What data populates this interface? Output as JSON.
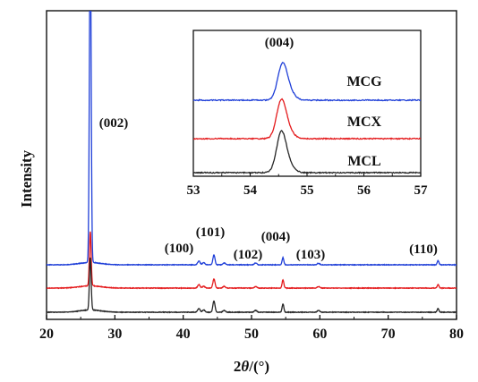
{
  "chart_data": [
    {
      "type": "line",
      "xlabel": "2θ/(°)",
      "ylabel": "Intensity",
      "xlim": [
        20,
        80
      ],
      "x_ticks": [
        20,
        30,
        40,
        50,
        60,
        70,
        80
      ],
      "y_ticks_labeled": false,
      "grid": false,
      "legend": "none (series labelled in inset)",
      "series": [
        {
          "name": "MCG",
          "color": "#1f3fd8",
          "offset": 2,
          "peaks": [
            {
              "x": 26.4,
              "h": 9.0,
              "w": 0.18
            },
            {
              "x": 42.3,
              "h": 0.1,
              "w": 0.25
            },
            {
              "x": 43.0,
              "h": 0.06,
              "w": 0.25
            },
            {
              "x": 44.5,
              "h": 0.26,
              "w": 0.22
            },
            {
              "x": 46.0,
              "h": 0.05,
              "w": 0.25
            },
            {
              "x": 50.6,
              "h": 0.05,
              "w": 0.25
            },
            {
              "x": 54.6,
              "h": 0.19,
              "w": 0.18
            },
            {
              "x": 59.8,
              "h": 0.04,
              "w": 0.25
            },
            {
              "x": 77.3,
              "h": 0.11,
              "w": 0.18
            }
          ]
        },
        {
          "name": "MCX",
          "color": "#e41a1c",
          "offset": 1,
          "peaks": [
            {
              "x": 26.4,
              "h": 1.45,
              "w": 0.18
            },
            {
              "x": 42.3,
              "h": 0.09,
              "w": 0.25
            },
            {
              "x": 43.0,
              "h": 0.05,
              "w": 0.25
            },
            {
              "x": 44.5,
              "h": 0.24,
              "w": 0.22
            },
            {
              "x": 46.0,
              "h": 0.05,
              "w": 0.25
            },
            {
              "x": 50.6,
              "h": 0.04,
              "w": 0.25
            },
            {
              "x": 54.6,
              "h": 0.22,
              "w": 0.18
            },
            {
              "x": 59.8,
              "h": 0.04,
              "w": 0.25
            },
            {
              "x": 77.3,
              "h": 0.09,
              "w": 0.18
            }
          ]
        },
        {
          "name": "MCL",
          "color": "#262626",
          "offset": 0,
          "peaks": [
            {
              "x": 26.4,
              "h": 1.4,
              "w": 0.18
            },
            {
              "x": 42.3,
              "h": 0.1,
              "w": 0.25
            },
            {
              "x": 43.0,
              "h": 0.06,
              "w": 0.25
            },
            {
              "x": 44.5,
              "h": 0.3,
              "w": 0.22
            },
            {
              "x": 46.0,
              "h": 0.05,
              "w": 0.25
            },
            {
              "x": 50.6,
              "h": 0.05,
              "w": 0.25
            },
            {
              "x": 54.6,
              "h": 0.22,
              "w": 0.18
            },
            {
              "x": 59.8,
              "h": 0.05,
              "w": 0.25
            },
            {
              "x": 77.3,
              "h": 0.1,
              "w": 0.18
            }
          ]
        }
      ],
      "annotations": [
        {
          "text": "(002)",
          "x": 26.4
        },
        {
          "text": "(100)",
          "x": 42.3
        },
        {
          "text": "(101)",
          "x": 44.5
        },
        {
          "text": "(102)",
          "x": 50.6
        },
        {
          "text": "(004)",
          "x": 54.6
        },
        {
          "text": "(103)",
          "x": 59.8
        },
        {
          "text": "(110)",
          "x": 77.3
        }
      ]
    },
    {
      "type": "line",
      "inset": true,
      "xlim": [
        53,
        57
      ],
      "x_ticks": [
        53,
        54,
        55,
        56,
        57
      ],
      "y_ticks_labeled": false,
      "annotation": "(004)",
      "series": [
        {
          "name": "MCG",
          "color": "#1f3fd8",
          "offset": 2,
          "peak_x": 54.57,
          "peak_h": 0.52,
          "width": 0.12
        },
        {
          "name": "MCX",
          "color": "#e41a1c",
          "offset": 1,
          "peak_x": 54.55,
          "peak_h": 0.55,
          "width": 0.12
        },
        {
          "name": "MCL",
          "color": "#262626",
          "offset": 0,
          "peak_x": 54.55,
          "peak_h": 0.58,
          "width": 0.12
        }
      ]
    }
  ]
}
